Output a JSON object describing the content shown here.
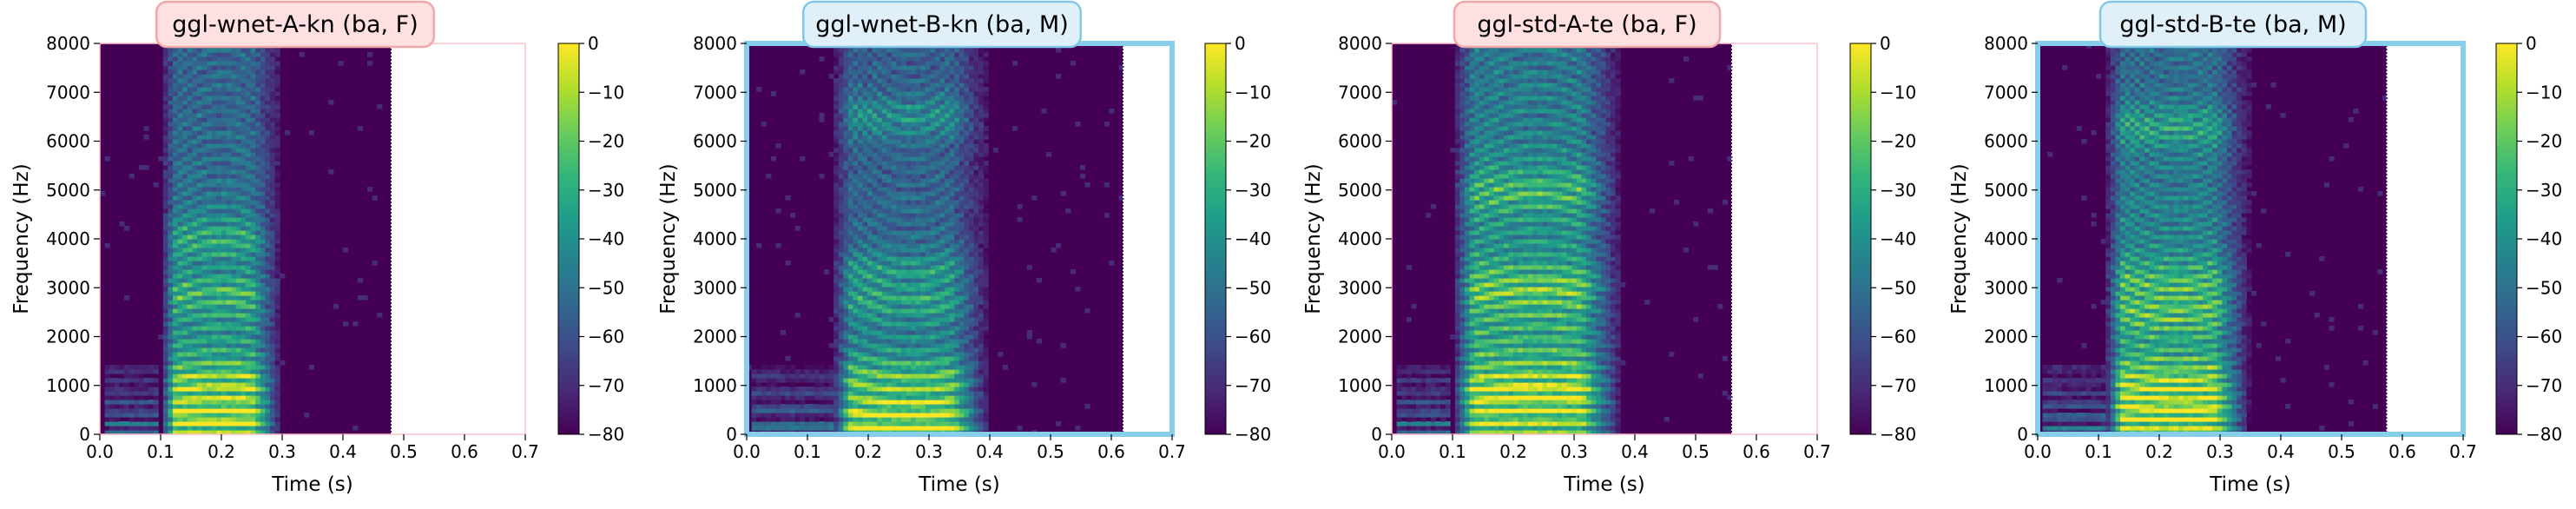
{
  "chart_data": [
    {
      "type": "heatmap",
      "title": "ggl-wnet-A-kn (ba, F)",
      "title_box_color": "#ffe0e0",
      "title_border_color": "#f2a7a7",
      "frame_color": "#ffc0cb",
      "frame_style": "thin",
      "xlabel": "Time (s)",
      "ylabel": "Frequency (Hz)",
      "xlim": [
        0.0,
        0.7
      ],
      "ylim": [
        0,
        8000
      ],
      "xticks": [
        "0.0",
        "0.1",
        "0.2",
        "0.3",
        "0.4",
        "0.5",
        "0.6",
        "0.7"
      ],
      "yticks": [
        "0",
        "1000",
        "2000",
        "3000",
        "4000",
        "5000",
        "6000",
        "7000",
        "8000"
      ],
      "data_end_time": 0.48,
      "colorbar": {
        "range": [
          -80,
          0
        ],
        "ticks": [
          "0",
          "−10",
          "−20",
          "−30",
          "−40",
          "−50",
          "−60",
          "−70",
          "−80"
        ]
      },
      "colormap": "viridis",
      "speech": {
        "onset": 0.1,
        "offset": 0.3,
        "f0_hz": 220,
        "harmonic_energy_hz": 2000,
        "formants_hz": [
          500,
          1000,
          2900,
          4000
        ]
      }
    },
    {
      "type": "heatmap",
      "title": "ggl-wnet-B-kn (ba, M)",
      "title_box_color": "#dff0f8",
      "title_border_color": "#7fc8e8",
      "frame_color": "#87ceeb",
      "frame_style": "thick",
      "xlabel": "Time (s)",
      "ylabel": "Frequency (Hz)",
      "xlim": [
        0.0,
        0.7
      ],
      "ylim": [
        0,
        8000
      ],
      "xticks": [
        "0.0",
        "0.1",
        "0.2",
        "0.3",
        "0.4",
        "0.5",
        "0.6",
        "0.7"
      ],
      "yticks": [
        "0",
        "1000",
        "2000",
        "3000",
        "4000",
        "5000",
        "6000",
        "7000",
        "8000"
      ],
      "data_end_time": 0.62,
      "colorbar": {
        "range": [
          -80,
          0
        ],
        "ticks": [
          "0",
          "−10",
          "−20",
          "−30",
          "−40",
          "−50",
          "−60",
          "−70",
          "−80"
        ]
      },
      "colormap": "viridis",
      "speech": {
        "onset": 0.14,
        "offset": 0.4,
        "f0_hz": 120,
        "harmonic_energy_hz": 1200,
        "formants_hz": [
          500,
          1100,
          2800,
          3300,
          6500
        ]
      }
    },
    {
      "type": "heatmap",
      "title": "ggl-std-A-te (ba, F)",
      "title_box_color": "#ffe0e0",
      "title_border_color": "#f2a7a7",
      "frame_color": "#ffc0cb",
      "frame_style": "thin",
      "xlabel": "Time (s)",
      "ylabel": "Frequency (Hz)",
      "xlim": [
        0.0,
        0.7
      ],
      "ylim": [
        0,
        8000
      ],
      "xticks": [
        "0.0",
        "0.1",
        "0.2",
        "0.3",
        "0.4",
        "0.5",
        "0.6",
        "0.7"
      ],
      "yticks": [
        "0",
        "1000",
        "2000",
        "3000",
        "4000",
        "5000",
        "6000",
        "7000",
        "8000"
      ],
      "data_end_time": 0.56,
      "colorbar": {
        "range": [
          -80,
          0
        ],
        "ticks": [
          "0",
          "−10",
          "−20",
          "−30",
          "−40",
          "−50",
          "−60",
          "−70",
          "−80"
        ]
      },
      "colormap": "viridis",
      "speech": {
        "onset": 0.1,
        "offset": 0.38,
        "f0_hz": 220,
        "harmonic_energy_hz": 3500,
        "formants_hz": [
          900,
          3000,
          5000
        ]
      }
    },
    {
      "type": "heatmap",
      "title": "ggl-std-B-te (ba, M)",
      "title_box_color": "#dff0f8",
      "title_border_color": "#7fc8e8",
      "frame_color": "#87ceeb",
      "frame_style": "thick",
      "xlabel": "Time (s)",
      "ylabel": "Frequency (Hz)",
      "xlim": [
        0.0,
        0.7
      ],
      "ylim": [
        0,
        8000
      ],
      "xticks": [
        "0.0",
        "0.1",
        "0.2",
        "0.3",
        "0.4",
        "0.5",
        "0.6",
        "0.7"
      ],
      "yticks": [
        "0",
        "1000",
        "2000",
        "3000",
        "4000",
        "5000",
        "6000",
        "7000",
        "8000"
      ],
      "data_end_time": 0.575,
      "colorbar": {
        "range": [
          -80,
          0
        ],
        "ticks": [
          "0",
          "−10",
          "−20",
          "−30",
          "−40",
          "−50",
          "−60",
          "−70",
          "−80"
        ]
      },
      "colormap": "viridis",
      "speech": {
        "onset": 0.11,
        "offset": 0.35,
        "f0_hz": 140,
        "harmonic_energy_hz": 2600,
        "formants_hz": [
          600,
          1000,
          2600,
          3100,
          6300
        ]
      }
    }
  ]
}
